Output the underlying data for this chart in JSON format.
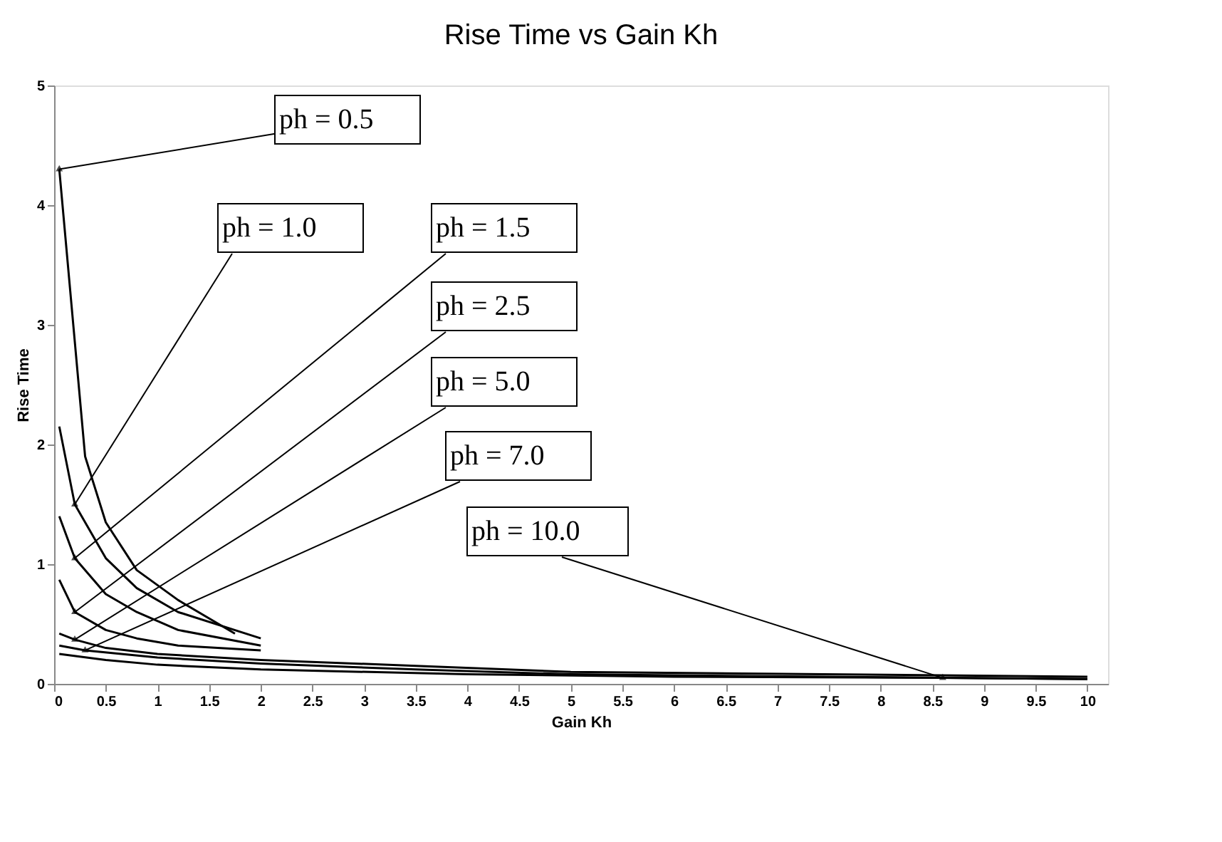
{
  "chart_data": {
    "type": "line",
    "title": "Rise Time vs Gain Kh",
    "xlabel": "Gain Kh",
    "ylabel": "Rise Time",
    "xlim": [
      0,
      10.2
    ],
    "ylim": [
      0,
      5
    ],
    "xticks": [
      0,
      0.5,
      1,
      1.5,
      2,
      2.5,
      3,
      3.5,
      4,
      4.5,
      5,
      5.5,
      6,
      6.5,
      7,
      7.5,
      8,
      8.5,
      9,
      9.5,
      10
    ],
    "yticks": [
      0,
      1,
      2,
      3,
      4,
      5
    ],
    "grid": false,
    "marker": "none",
    "line_style": "solid",
    "series": [
      {
        "color": "#000000",
        "x": [
          0.05,
          0.3,
          0.5,
          0.8,
          1.2,
          1.75
        ],
        "values": [
          4.3,
          1.9,
          1.35,
          0.95,
          0.7,
          0.42
        ]
      },
      {
        "color": "#000000",
        "x": [
          0.05,
          0.2,
          0.5,
          0.8,
          1.2,
          2.0
        ],
        "values": [
          2.15,
          1.5,
          1.05,
          0.8,
          0.6,
          0.38
        ]
      },
      {
        "color": "#000000",
        "x": [
          0.05,
          0.2,
          0.5,
          0.8,
          1.2,
          2.0
        ],
        "values": [
          1.4,
          1.05,
          0.75,
          0.6,
          0.45,
          0.32
        ]
      },
      {
        "color": "#000000",
        "x": [
          0.05,
          0.2,
          0.5,
          0.8,
          1.2,
          2.0
        ],
        "values": [
          0.87,
          0.6,
          0.45,
          0.38,
          0.32,
          0.28
        ]
      },
      {
        "color": "#000000",
        "x": [
          0.05,
          0.2,
          0.5,
          1.0,
          2.0,
          3.5,
          5.0,
          10.0
        ],
        "values": [
          0.42,
          0.37,
          0.3,
          0.25,
          0.2,
          0.15,
          0.1,
          0.06
        ]
      },
      {
        "color": "#000000",
        "x": [
          0.05,
          0.3,
          1.0,
          2.0,
          3.5,
          5.0,
          8.6,
          10.0
        ],
        "values": [
          0.32,
          0.28,
          0.22,
          0.17,
          0.12,
          0.08,
          0.05,
          0.04
        ]
      },
      {
        "color": "#000000",
        "x": [
          0.05,
          0.5,
          1.0,
          2.0,
          4.0,
          6.0,
          8.6,
          10.0
        ],
        "values": [
          0.25,
          0.2,
          0.16,
          0.12,
          0.08,
          0.06,
          0.05,
          0.04
        ]
      }
    ],
    "annotations": [
      {
        "text": "ph = 0.5",
        "x": 0.05,
        "y": 4.3
      },
      {
        "text": "ph = 1.0",
        "x": 0.2,
        "y": 1.5
      },
      {
        "text": "ph = 1.5",
        "x": 0.2,
        "y": 1.05
      },
      {
        "text": "ph = 2.5",
        "x": 0.2,
        "y": 0.6
      },
      {
        "text": "ph = 5.0",
        "x": 0.2,
        "y": 0.37
      },
      {
        "text": "ph = 7.0",
        "x": 0.3,
        "y": 0.28
      },
      {
        "text": "ph = 10.0",
        "x": 8.6,
        "y": 0.05
      }
    ]
  }
}
